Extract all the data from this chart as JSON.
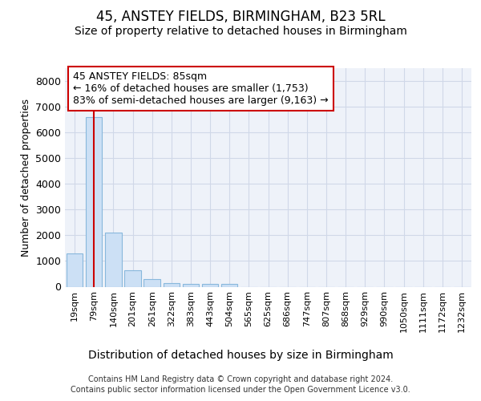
{
  "title": "45, ANSTEY FIELDS, BIRMINGHAM, B23 5RL",
  "subtitle": "Size of property relative to detached houses in Birmingham",
  "xlabel": "Distribution of detached houses by size in Birmingham",
  "ylabel": "Number of detached properties",
  "bin_labels": [
    "19sqm",
    "79sqm",
    "140sqm",
    "201sqm",
    "261sqm",
    "322sqm",
    "383sqm",
    "443sqm",
    "504sqm",
    "565sqm",
    "625sqm",
    "686sqm",
    "747sqm",
    "807sqm",
    "868sqm",
    "929sqm",
    "990sqm",
    "1050sqm",
    "1111sqm",
    "1172sqm",
    "1232sqm"
  ],
  "bar_heights": [
    1300,
    6600,
    2100,
    650,
    300,
    150,
    100,
    100,
    100,
    0,
    0,
    0,
    0,
    0,
    0,
    0,
    0,
    0,
    0,
    0,
    0
  ],
  "bar_color": "#cce0f5",
  "bar_edge_color": "#88b8dc",
  "vline_color": "#cc0000",
  "vline_x": 1.0,
  "annotation_text": "45 ANSTEY FIELDS: 85sqm\n← 16% of detached houses are smaller (1,753)\n83% of semi-detached houses are larger (9,163) →",
  "annotation_box_facecolor": "#ffffff",
  "annotation_box_edgecolor": "#cc0000",
  "ylim": [
    0,
    8500
  ],
  "yticks": [
    0,
    1000,
    2000,
    3000,
    4000,
    5000,
    6000,
    7000,
    8000
  ],
  "grid_color": "#d0d8e8",
  "bg_color": "#eef2f9",
  "footer_line1": "Contains HM Land Registry data © Crown copyright and database right 2024.",
  "footer_line2": "Contains public sector information licensed under the Open Government Licence v3.0.",
  "title_fontsize": 12,
  "subtitle_fontsize": 10,
  "ylabel_fontsize": 9,
  "xlabel_fontsize": 10,
  "ytick_fontsize": 9,
  "xtick_fontsize": 8,
  "annotation_fontsize": 9,
  "footer_fontsize": 7
}
